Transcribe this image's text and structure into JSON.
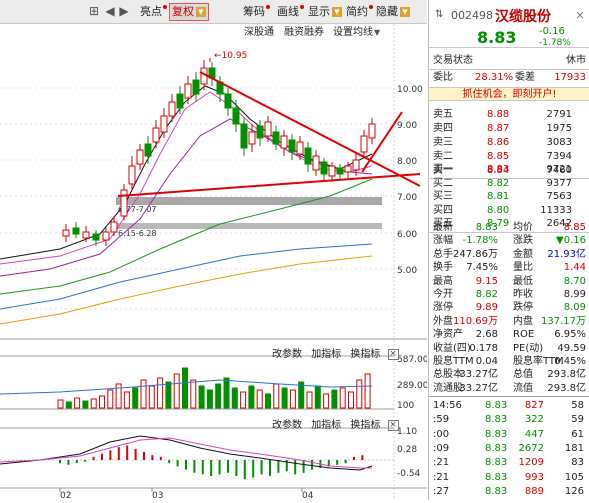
{
  "toolbar": {
    "items": [
      {
        "name": "back-icon",
        "glyph": "⊞",
        "x": 88
      },
      {
        "name": "prev-icon",
        "glyph": "◀",
        "x": 104
      },
      {
        "name": "next-icon",
        "glyph": "▶",
        "x": 118
      }
    ],
    "buttons": {
      "high_low": "亮点",
      "fuquan": "复权",
      "chouma": "筹码",
      "huaxian": "画线",
      "xianshi": "显示",
      "jianyue": "简约",
      "yincang": "隐藏"
    }
  },
  "chart_tabs": {
    "tab1": "深股通",
    "tab2": "融资融券",
    "tab3": "设置均线"
  },
  "price_chart": {
    "y_ticks": [
      "10.00",
      "9.00",
      "8.00",
      "7.00",
      "6.00",
      "5.00"
    ],
    "max_label": "10.95",
    "support1": "6.77-7.07",
    "support2": "6.15-6.28"
  },
  "volume_bar": {
    "btn1": "改参数",
    "btn2": "加指标",
    "btn3": "换指标",
    "y_ticks": [
      "587.00",
      "289.00",
      "100"
    ]
  },
  "macd_bar": {
    "btn1": "改参数",
    "btn2": "加指标",
    "btn3": "换指标",
    "y_ticks": [
      "1.10",
      "0.28",
      "-0.54"
    ]
  },
  "x_axis": {
    "labels": [
      "02",
      "03",
      "04"
    ]
  },
  "stock": {
    "code": "002498",
    "name": "汉缆股份",
    "price": "8.83",
    "change": "-0.16",
    "change_pct": "-1.78%",
    "trade_status_label": "交易状态",
    "trade_status": "休市",
    "weibi_label": "委比",
    "weibi": "28.31%",
    "weicha_label": "委差",
    "weicha": "17933",
    "banner": "抓住机会，即刻开户!"
  },
  "orderbook": {
    "sells": [
      {
        "label": "卖五",
        "price": "8.88",
        "vol": "2791"
      },
      {
        "label": "卖四",
        "price": "8.87",
        "vol": "1975"
      },
      {
        "label": "卖三",
        "price": "8.86",
        "vol": "3083"
      },
      {
        "label": "卖二",
        "price": "8.85",
        "vol": "7394"
      },
      {
        "label": "卖一",
        "price": "8.84",
        "vol": "7460"
      }
    ],
    "buys": [
      {
        "label": "买一",
        "price": "8.83",
        "vol": "9721"
      },
      {
        "label": "买二",
        "price": "8.82",
        "vol": "9377"
      },
      {
        "label": "买三",
        "price": "8.81",
        "vol": "7563"
      },
      {
        "label": "买四",
        "price": "8.80",
        "vol": "11333"
      },
      {
        "label": "买五",
        "price": "8.79",
        "vol": "2642"
      }
    ]
  },
  "stats": [
    {
      "l1": "最新",
      "v1": "8.83",
      "c1": "grn",
      "l2": "均价",
      "v2": "8.85",
      "c2": "red"
    },
    {
      "l1": "涨幅",
      "v1": "-1.78%",
      "c1": "grn",
      "l2": "涨跌",
      "v2": "▼0.16",
      "c2": "grn"
    },
    {
      "l1": "总手",
      "v1": "247.86万",
      "c1": "",
      "l2": "金额",
      "v2": "21.93亿",
      "c2": "blu"
    },
    {
      "l1": "换手",
      "v1": "7.45%",
      "c1": "",
      "l2": "量比",
      "v2": "1.44",
      "c2": "red"
    },
    {
      "l1": "最高",
      "v1": "9.15",
      "c1": "red",
      "l2": "最低",
      "v2": "8.70",
      "c2": "grn"
    },
    {
      "l1": "今开",
      "v1": "8.82",
      "c1": "grn",
      "l2": "昨收",
      "v2": "8.99",
      "c2": ""
    },
    {
      "l1": "涨停",
      "v1": "9.89",
      "c1": "red",
      "l2": "跌停",
      "v2": "8.09",
      "c2": "grn"
    },
    {
      "l1": "外盘",
      "v1": "110.69万",
      "c1": "red",
      "l2": "内盘",
      "v2": "137.17万",
      "c2": "grn"
    },
    {
      "l1": "净资产",
      "v1": "2.68",
      "c1": "",
      "l2": "ROE",
      "v2": "6.95%",
      "c2": ""
    },
    {
      "l1": "收益(四)",
      "v1": "0.178",
      "c1": "",
      "l2": "PE(动)",
      "v2": "49.59",
      "c2": ""
    },
    {
      "l1": "股息TTM",
      "v1": "0.04",
      "c1": "",
      "l2": "股息率TTM",
      "v2": "0.45%",
      "c2": ""
    },
    {
      "l1": "总股本",
      "v1": "33.27亿",
      "c1": "",
      "l2": "总值",
      "v2": "293.8亿",
      "c2": ""
    },
    {
      "l1": "流通股",
      "v1": "33.27亿",
      "c1": "",
      "l2": "流值",
      "v2": "293.8亿",
      "c2": ""
    }
  ],
  "ticks": [
    {
      "time": "14:56",
      "price": "8.83",
      "vol": "827",
      "n": "58",
      "c": "red"
    },
    {
      "time": ":59",
      "price": "8.83",
      "vol": "322",
      "n": "59",
      "c": "grn"
    },
    {
      "time": ":00",
      "price": "8.83",
      "vol": "447",
      "n": "61",
      "c": "grn"
    },
    {
      "time": ":09",
      "price": "8.83",
      "vol": "2672",
      "n": "181",
      "c": "grn"
    },
    {
      "time": ":21",
      "price": "8.83",
      "vol": "1209",
      "n": "83",
      "c": "red"
    },
    {
      "time": ":21",
      "price": "8.83",
      "vol": "993",
      "n": "105",
      "c": "red"
    },
    {
      "time": ":27",
      "price": "8.83",
      "vol": "889",
      "n": "126",
      "c": "red"
    }
  ],
  "colors": {
    "up": "#d60000",
    "down": "#009000",
    "accent": "#c40000"
  }
}
